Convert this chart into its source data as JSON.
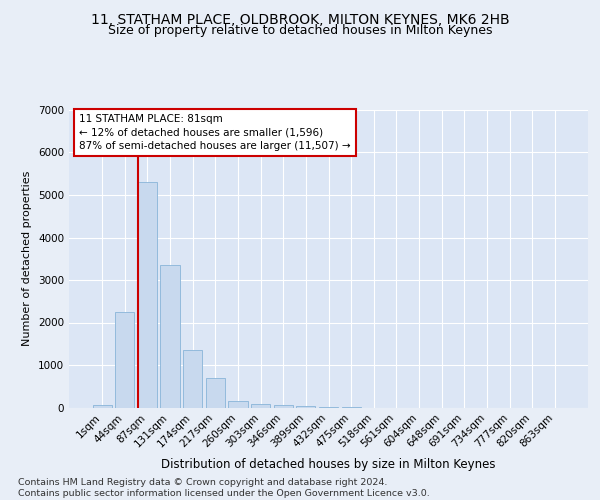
{
  "title1": "11, STATHAM PLACE, OLDBROOK, MILTON KEYNES, MK6 2HB",
  "title2": "Size of property relative to detached houses in Milton Keynes",
  "xlabel": "Distribution of detached houses by size in Milton Keynes",
  "ylabel": "Number of detached properties",
  "footnote": "Contains HM Land Registry data © Crown copyright and database right 2024.\nContains public sector information licensed under the Open Government Licence v3.0.",
  "bar_labels": [
    "1sqm",
    "44sqm",
    "87sqm",
    "131sqm",
    "174sqm",
    "217sqm",
    "260sqm",
    "303sqm",
    "346sqm",
    "389sqm",
    "432sqm",
    "475sqm",
    "518sqm",
    "561sqm",
    "604sqm",
    "648sqm",
    "691sqm",
    "734sqm",
    "777sqm",
    "820sqm",
    "863sqm"
  ],
  "bar_values": [
    55,
    2250,
    5300,
    3350,
    1350,
    700,
    150,
    75,
    50,
    30,
    10,
    5,
    0,
    0,
    0,
    0,
    0,
    0,
    0,
    0,
    0
  ],
  "bar_color": "#c8d9ee",
  "bar_edge_color": "#89b4d8",
  "annotation_text": "11 STATHAM PLACE: 81sqm\n← 12% of detached houses are smaller (1,596)\n87% of semi-detached houses are larger (11,507) →",
  "annotation_box_facecolor": "#ffffff",
  "annotation_box_edgecolor": "#cc0000",
  "vline_bar_index": 2,
  "vline_color": "#cc0000",
  "bg_color": "#e8eef7",
  "plot_bg_color": "#dce6f5",
  "grid_color": "#ffffff",
  "ylim": [
    0,
    7000
  ],
  "yticks": [
    0,
    1000,
    2000,
    3000,
    4000,
    5000,
    6000,
    7000
  ],
  "title1_fontsize": 10,
  "title2_fontsize": 9,
  "xlabel_fontsize": 8.5,
  "ylabel_fontsize": 8,
  "tick_fontsize": 7.5,
  "annotation_fontsize": 7.5,
  "footnote_fontsize": 6.8
}
